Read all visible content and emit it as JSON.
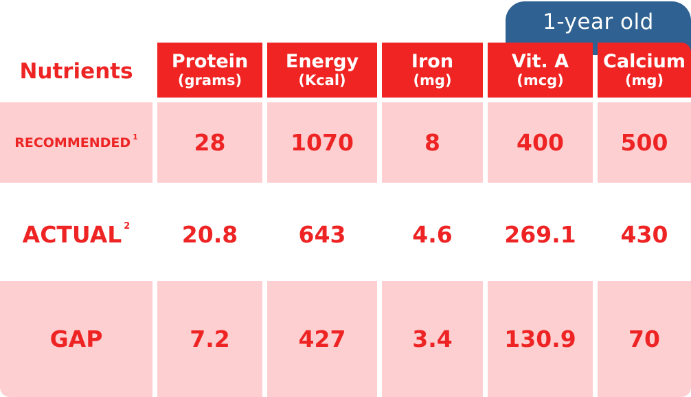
{
  "age_tab": "1-year old",
  "corner_label": "Nutrients",
  "columns": [
    {
      "name": "Protein",
      "unit": "(grams)"
    },
    {
      "name": "Energy",
      "unit": "(Kcal)"
    },
    {
      "name": "Iron",
      "unit": "(mg)"
    },
    {
      "name": "Vit. A",
      "unit": "(mcg)"
    },
    {
      "name": "Calcium",
      "unit": "(mg)"
    }
  ],
  "rows": [
    {
      "label": "RECOMMENDED",
      "footnote": "1",
      "values": [
        "28",
        "1070",
        "8",
        "400",
        "500"
      ]
    },
    {
      "label": "ACTUAL",
      "footnote": "2",
      "values": [
        "20.8",
        "643",
        "4.6",
        "269.1",
        "430"
      ]
    },
    {
      "label": "GAP",
      "footnote": "",
      "values": [
        "7.2",
        "427",
        "3.4",
        "130.9",
        "70"
      ]
    }
  ],
  "colors": {
    "header_red": "#f02422",
    "text_red": "#ee2424",
    "row_pink": "#fdcfd1",
    "tab_blue": "#2f6292",
    "header_text": "#ffffff"
  },
  "chart_data": {
    "type": "table",
    "title": "1-year old",
    "columns": [
      "Protein (grams)",
      "Energy (Kcal)",
      "Iron (mg)",
      "Vit. A (mcg)",
      "Calcium (mg)"
    ],
    "series": [
      {
        "name": "RECOMMENDED",
        "values": [
          28,
          1070,
          8,
          400,
          500
        ]
      },
      {
        "name": "ACTUAL",
        "values": [
          20.8,
          643,
          4.6,
          269.1,
          430
        ]
      },
      {
        "name": "GAP",
        "values": [
          7.2,
          427,
          3.4,
          130.9,
          70
        ]
      }
    ]
  }
}
